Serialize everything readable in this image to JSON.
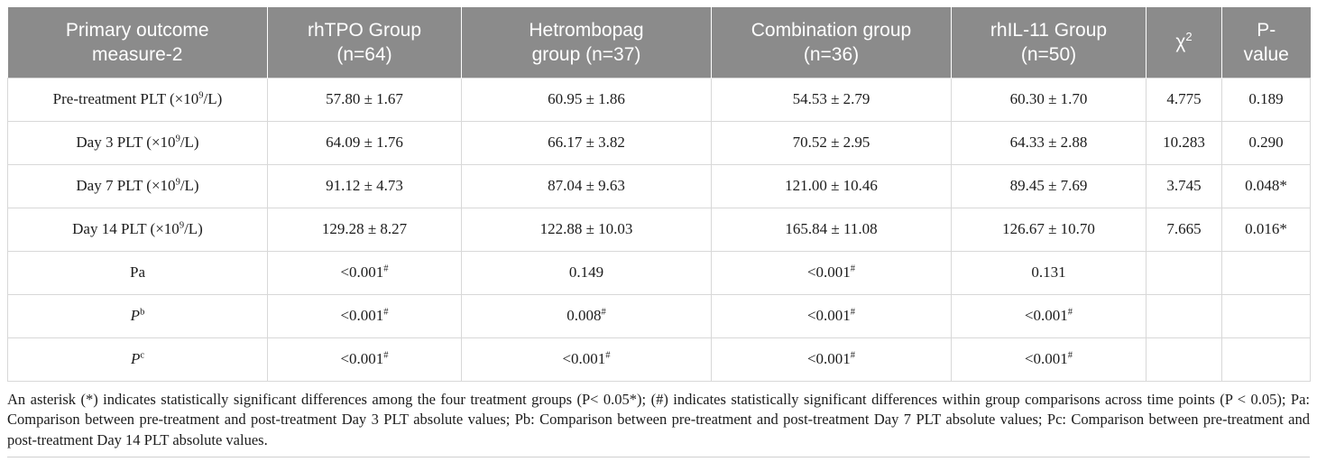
{
  "colors": {
    "header_bg": "#8b8b8b",
    "header_text": "#ffffff",
    "border": "#d8d8d8",
    "body_text": "#1c1c1c"
  },
  "table": {
    "header": [
      "Primary outcome\nmeasure-2",
      "rhTPO Group\n(n=64)",
      "Hetrombopag\ngroup (n=37)",
      "Combination group\n(n=36)",
      "rhIL-11 Group\n(n=50)",
      "χ^{2}",
      "P-\nvalue"
    ],
    "rows": [
      {
        "cells": [
          "Pre-treatment PLT (×10^{9}/L)",
          "57.80 ± 1.67",
          "60.95 ± 1.86",
          "54.53 ± 2.79",
          "60.30 ± 1.70",
          "4.775",
          "0.189"
        ]
      },
      {
        "cells": [
          "Day 3 PLT (×10^{9}/L)",
          "64.09 ± 1.76",
          "66.17 ± 3.82",
          "70.52 ± 2.95",
          "64.33 ± 2.88",
          "10.283",
          "0.290"
        ]
      },
      {
        "cells": [
          "Day 7 PLT (×10^{9}/L)",
          "91.12 ± 4.73",
          "87.04 ± 9.63",
          "121.00 ± 10.46",
          "89.45 ± 7.69",
          "3.745",
          "0.048*"
        ]
      },
      {
        "cells": [
          "Day 14 PLT (×10^{9}/L)",
          "129.28 ± 8.27",
          "122.88 ± 10.03",
          "165.84 ± 11.08",
          "126.67 ± 10.70",
          "7.665",
          "0.016*"
        ]
      },
      {
        "cells": [
          "Pa",
          "<0.001^{#}",
          "0.149",
          "<0.001^{#}",
          "0.131",
          "",
          ""
        ]
      },
      {
        "cells": [
          "//P//^{b}",
          "<0.001^{#}",
          "0.008^{#}",
          "<0.001^{#}",
          "<0.001^{#}",
          "",
          ""
        ]
      },
      {
        "cells": [
          "//P//^{c}",
          "<0.001^{#}",
          "<0.001^{#}",
          "<0.001^{#}",
          "<0.001^{#}",
          "",
          ""
        ]
      }
    ]
  },
  "footnote": "An asterisk (*) indicates statistically significant differences among the four treatment groups (P< 0.05*); (#) indicates statistically significant differences within group comparisons across time points (P < 0.05); Pa: Comparison between pre-treatment and post-treatment Day 3 PLT absolute values; Pb: Comparison between pre-treatment and post-treatment Day 7 PLT absolute values; Pc: Comparison between pre-treatment and post-treatment Day 14 PLT absolute values."
}
